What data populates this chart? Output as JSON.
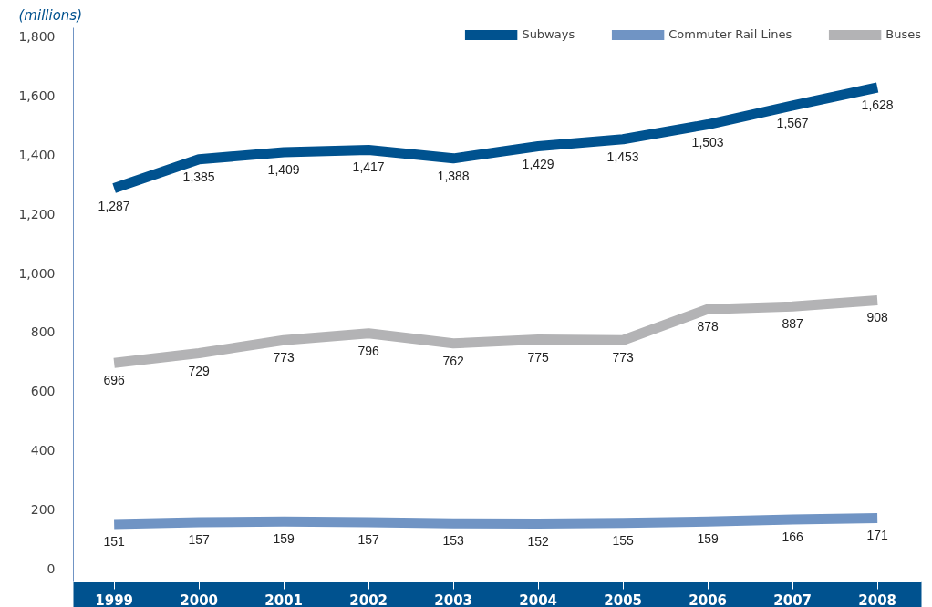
{
  "chart_data": {
    "type": "line",
    "ylabel": "(millions)",
    "categories": [
      "1999",
      "2000",
      "2001",
      "2002",
      "2003",
      "2004",
      "2005",
      "2006",
      "2007",
      "2008"
    ],
    "series": [
      {
        "name": "Subways",
        "color": "#00528f",
        "values": [
          1287,
          1385,
          1409,
          1417,
          1388,
          1429,
          1453,
          1503,
          1567,
          1628
        ],
        "value_labels": [
          "1,287",
          "1,385",
          "1,409",
          "1,417",
          "1,388",
          "1,429",
          "1,453",
          "1,503",
          "1,567",
          "1,628"
        ]
      },
      {
        "name": "Commuter Rail Lines",
        "color": "#7094c4",
        "values": [
          151,
          157,
          159,
          157,
          153,
          152,
          155,
          159,
          166,
          171
        ],
        "value_labels": [
          "151",
          "157",
          "159",
          "157",
          "153",
          "152",
          "155",
          "159",
          "166",
          "171"
        ]
      },
      {
        "name": "Buses",
        "color": "#b3b3b5",
        "values": [
          696,
          729,
          773,
          796,
          762,
          775,
          773,
          878,
          887,
          908
        ],
        "value_labels": [
          "696",
          "729",
          "773",
          "796",
          "762",
          "775",
          "773",
          "878",
          "887",
          "908"
        ]
      }
    ],
    "ylim": [
      -45,
      1830
    ],
    "yticks": [
      0,
      200,
      400,
      600,
      800,
      {
        "value": 1000,
        "label": "1,000"
      },
      {
        "value": 1200,
        "label": "1,200"
      },
      {
        "value": 1400,
        "label": "1,400"
      },
      {
        "value": 1600,
        "label": "1,600"
      },
      {
        "value": 1800,
        "label": "1,800"
      }
    ],
    "grid": false,
    "legend": "top right",
    "line_style": "solid",
    "marker": "none"
  }
}
